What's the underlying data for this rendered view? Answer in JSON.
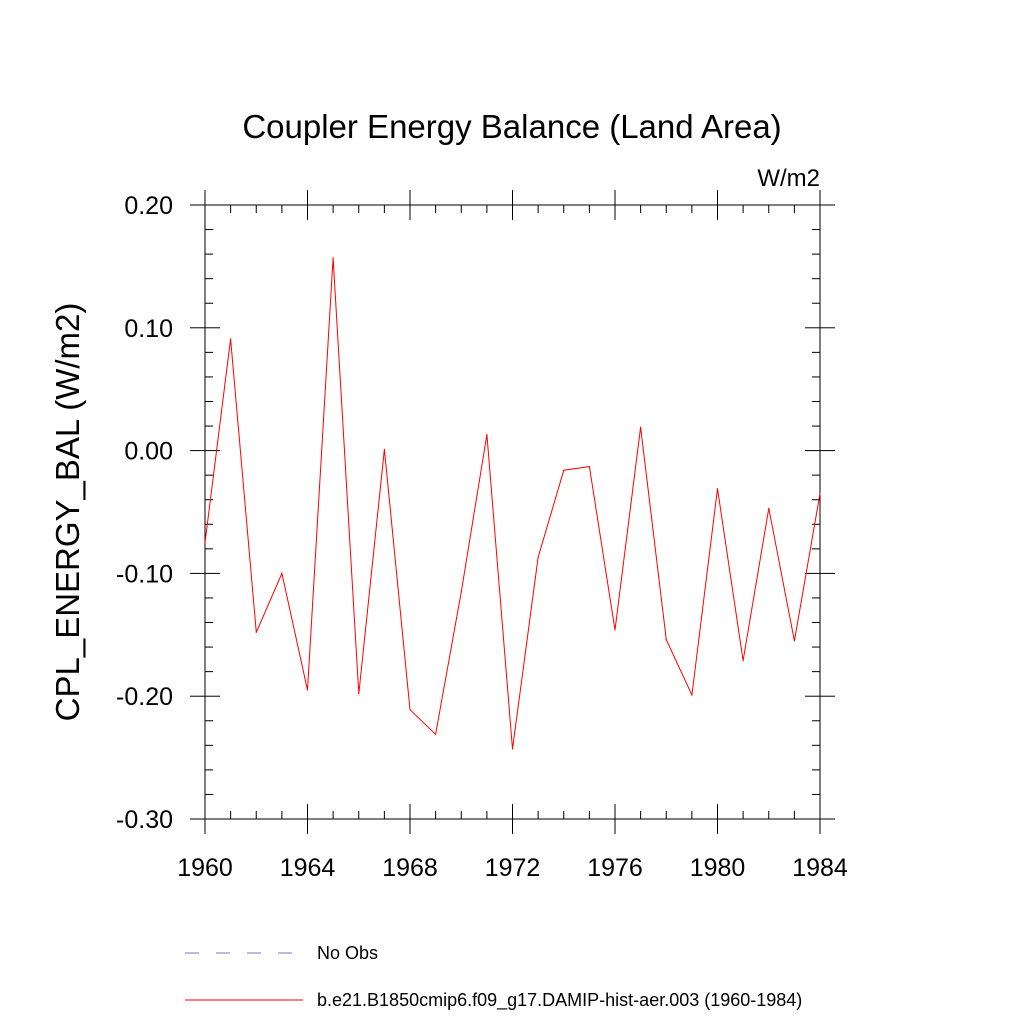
{
  "chart_data": {
    "type": "line",
    "title": "Coupler Energy Balance (Land Area)",
    "units_label": "W/m2",
    "ylabel": "CPL_ENERGY_BAL  (W/m2)",
    "xlabel": "",
    "xlim": [
      1960,
      1984
    ],
    "ylim": [
      -0.3,
      0.2
    ],
    "x_ticks": [
      1960,
      1964,
      1968,
      1972,
      1976,
      1980,
      1984
    ],
    "x_tick_labels": [
      "1960",
      "1964",
      "1968",
      "1972",
      "1976",
      "1980",
      "1984"
    ],
    "y_ticks": [
      0.2,
      0.1,
      0.0,
      -0.1,
      -0.2,
      -0.3
    ],
    "y_tick_labels": [
      "0.20",
      "0.10",
      "0.00",
      "-0.10",
      "-0.20",
      "-0.30"
    ],
    "grid": false,
    "legend_position": "bottom",
    "series": [
      {
        "name": "b.e21.B1850cmip6.f09_g17.DAMIP-hist-aer.003 (1960-1984)",
        "color": "#ff0000",
        "style": "solid",
        "x": [
          1960,
          1961,
          1962,
          1963,
          1964,
          1965,
          1966,
          1967,
          1968,
          1969,
          1970,
          1971,
          1972,
          1973,
          1974,
          1975,
          1976,
          1977,
          1978,
          1979,
          1980,
          1981,
          1982,
          1983,
          1984
        ],
        "y": [
          -0.075,
          0.091,
          -0.148,
          -0.1,
          -0.195,
          0.157,
          -0.198,
          0.001,
          -0.211,
          -0.231,
          -0.115,
          0.013,
          -0.243,
          -0.087,
          -0.016,
          -0.013,
          -0.146,
          0.019,
          -0.154,
          -0.199,
          -0.031,
          -0.171,
          -0.047,
          -0.155,
          -0.035
        ]
      }
    ],
    "legend": [
      {
        "label": "No Obs",
        "color": "#7d70c8",
        "style": "dashed"
      },
      {
        "label": "b.e21.B1850cmip6.f09_g17.DAMIP-hist-aer.003 (1960-1984)",
        "color": "#ff0000",
        "style": "solid"
      }
    ]
  }
}
